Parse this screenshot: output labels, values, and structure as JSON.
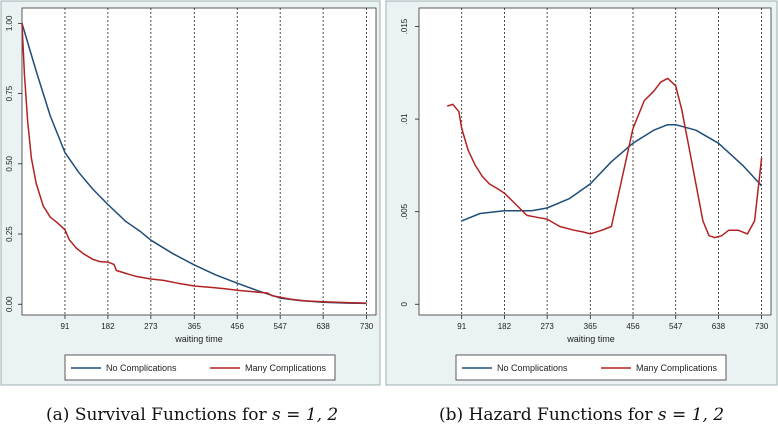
{
  "colors": {
    "no_complications": "#1f4e79",
    "many_complications": "#b22222",
    "panel_bg": "#eaf2f3",
    "plot_bg": "#ffffff"
  },
  "chart_data": [
    {
      "type": "line",
      "caption_label": "(a)",
      "caption_text": "Survival Functions for",
      "caption_math": "s = 1, 2",
      "xlabel": "waiting time",
      "ylabel": "",
      "xlim": [
        0,
        750
      ],
      "ylim": [
        0,
        1
      ],
      "x_ticks": [
        91,
        182,
        273,
        365,
        456,
        547,
        638,
        730
      ],
      "y_ticks": [
        "0.00",
        "0.25",
        "0.50",
        "0.75",
        "1.00"
      ],
      "y_tick_values": [
        0,
        0.25,
        0.5,
        0.75,
        1.0
      ],
      "grid": "vertical dashed lines at x ticks",
      "legend": {
        "placement": "bottom",
        "entries": [
          "No Complications",
          "Many Complications"
        ]
      },
      "series": [
        {
          "name": "No Complications",
          "points": [
            [
              0,
              1.0
            ],
            [
              30,
              0.83
            ],
            [
              60,
              0.67
            ],
            [
              91,
              0.54
            ],
            [
              120,
              0.47
            ],
            [
              150,
              0.41
            ],
            [
              182,
              0.355
            ],
            [
              220,
              0.295
            ],
            [
              250,
              0.26
            ],
            [
              273,
              0.228
            ],
            [
              320,
              0.18
            ],
            [
              365,
              0.14
            ],
            [
              410,
              0.105
            ],
            [
              456,
              0.075
            ],
            [
              500,
              0.048
            ],
            [
              547,
              0.022
            ],
            [
              590,
              0.013
            ],
            [
              638,
              0.007
            ],
            [
              690,
              0.004
            ],
            [
              730,
              0.003
            ]
          ]
        },
        {
          "name": "Many Complications",
          "points": [
            [
              0,
              1.0
            ],
            [
              5,
              0.82
            ],
            [
              12,
              0.65
            ],
            [
              20,
              0.52
            ],
            [
              30,
              0.43
            ],
            [
              45,
              0.35
            ],
            [
              60,
              0.31
            ],
            [
              75,
              0.29
            ],
            [
              91,
              0.265
            ],
            [
              100,
              0.23
            ],
            [
              115,
              0.2
            ],
            [
              130,
              0.18
            ],
            [
              150,
              0.16
            ],
            [
              165,
              0.152
            ],
            [
              182,
              0.15
            ],
            [
              195,
              0.142
            ],
            [
              200,
              0.12
            ],
            [
              220,
              0.11
            ],
            [
              240,
              0.1
            ],
            [
              273,
              0.09
            ],
            [
              300,
              0.085
            ],
            [
              330,
              0.075
            ],
            [
              365,
              0.065
            ],
            [
              400,
              0.06
            ],
            [
              430,
              0.055
            ],
            [
              456,
              0.05
            ],
            [
              500,
              0.043
            ],
            [
              520,
              0.04
            ],
            [
              530,
              0.03
            ],
            [
              547,
              0.025
            ],
            [
              570,
              0.018
            ],
            [
              600,
              0.012
            ],
            [
              638,
              0.009
            ],
            [
              690,
              0.006
            ],
            [
              730,
              0.004
            ]
          ]
        }
      ]
    },
    {
      "type": "line",
      "caption_label": "(b)",
      "caption_text": "Hazard Functions for",
      "caption_math": "s = 1, 2",
      "xlabel": "waiting time",
      "ylabel": "",
      "xlim": [
        0,
        750
      ],
      "ylim": [
        0,
        0.016
      ],
      "x_ticks": [
        91,
        182,
        273,
        365,
        456,
        547,
        638,
        730
      ],
      "y_ticks": [
        "0",
        ".005",
        ".01",
        ".015"
      ],
      "y_tick_values": [
        0,
        0.005,
        0.01,
        0.015
      ],
      "grid": "vertical dashed lines at x ticks",
      "legend": {
        "placement": "bottom",
        "entries": [
          "No Complications",
          "Many Complications"
        ]
      },
      "series": [
        {
          "name": "No Complications",
          "points": [
            [
              91,
              0.0045
            ],
            [
              130,
              0.0049
            ],
            [
              182,
              0.00505
            ],
            [
              240,
              0.00505
            ],
            [
              273,
              0.0052
            ],
            [
              320,
              0.0057
            ],
            [
              365,
              0.0065
            ],
            [
              410,
              0.0077
            ],
            [
              456,
              0.0087
            ],
            [
              500,
              0.0094
            ],
            [
              530,
              0.0097
            ],
            [
              547,
              0.0097
            ],
            [
              590,
              0.0094
            ],
            [
              638,
              0.0087
            ],
            [
              690,
              0.0075
            ],
            [
              730,
              0.0064
            ]
          ]
        },
        {
          "name": "Many Complications",
          "points": [
            [
              60,
              0.0107
            ],
            [
              72,
              0.0108
            ],
            [
              85,
              0.0104
            ],
            [
              91,
              0.0095
            ],
            [
              105,
              0.0083
            ],
            [
              120,
              0.0075
            ],
            [
              135,
              0.0069
            ],
            [
              150,
              0.0065
            ],
            [
              170,
              0.0062
            ],
            [
              182,
              0.006
            ],
            [
              210,
              0.0053
            ],
            [
              230,
              0.0048
            ],
            [
              250,
              0.0047
            ],
            [
              273,
              0.0046
            ],
            [
              300,
              0.0042
            ],
            [
              330,
              0.004
            ],
            [
              350,
              0.0039
            ],
            [
              365,
              0.0038
            ],
            [
              390,
              0.004
            ],
            [
              410,
              0.0042
            ],
            [
              430,
              0.0065
            ],
            [
              456,
              0.0095
            ],
            [
              480,
              0.011
            ],
            [
              500,
              0.0115
            ],
            [
              515,
              0.012
            ],
            [
              530,
              0.0122
            ],
            [
              547,
              0.0118
            ],
            [
              560,
              0.0105
            ],
            [
              575,
              0.0085
            ],
            [
              590,
              0.0065
            ],
            [
              605,
              0.0045
            ],
            [
              618,
              0.0037
            ],
            [
              630,
              0.0036
            ],
            [
              645,
              0.0037
            ],
            [
              660,
              0.004
            ],
            [
              680,
              0.004
            ],
            [
              700,
              0.0038
            ],
            [
              715,
              0.0045
            ],
            [
              730,
              0.0079
            ]
          ]
        }
      ]
    }
  ]
}
